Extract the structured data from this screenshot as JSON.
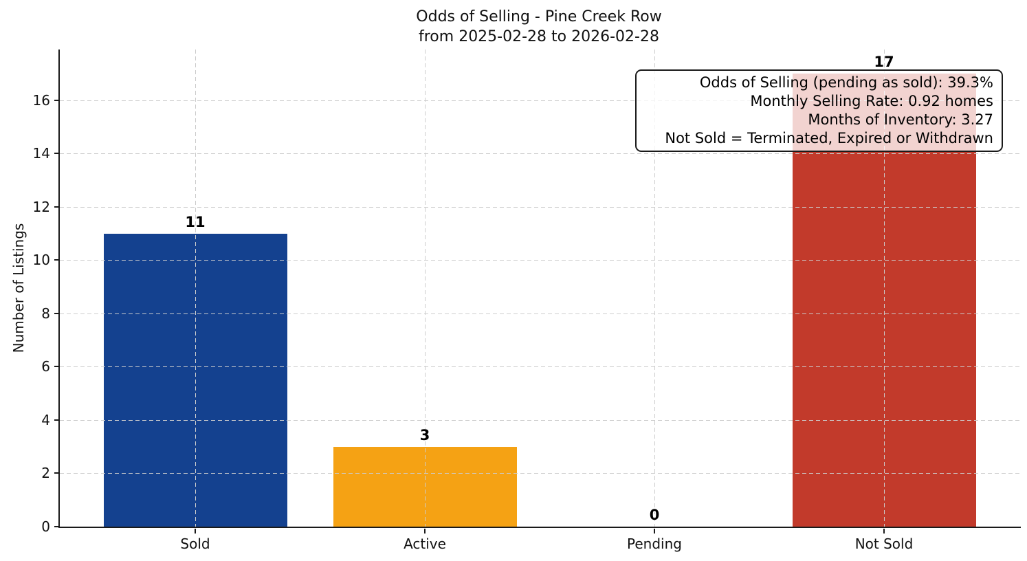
{
  "chart_data": {
    "type": "bar",
    "title": "Odds of Selling - Pine Creek Row",
    "subtitle": "from 2025-02-28 to 2026-02-28",
    "categories": [
      "Sold",
      "Active",
      "Pending",
      "Not Sold"
    ],
    "values": [
      11,
      3,
      0,
      17
    ],
    "bar_colors": [
      "#14418f",
      "#f5a214",
      null,
      "#c23a2b"
    ],
    "xlabel": "",
    "ylabel": "Number of Listings",
    "yticks": [
      0,
      2,
      4,
      6,
      8,
      10,
      12,
      14,
      16
    ],
    "ylim": [
      0,
      17.9
    ],
    "grid": {
      "style": "dashed",
      "axes": "both",
      "color": "#cccccc"
    },
    "legend": "none",
    "annotation_box": {
      "lines": [
        "Odds of Selling (pending as sold): 39.3%",
        "Monthly Selling Rate: 0.92 homes",
        "Months of Inventory: 3.27",
        "Not Sold = Terminated, Expired or Withdrawn"
      ]
    }
  }
}
